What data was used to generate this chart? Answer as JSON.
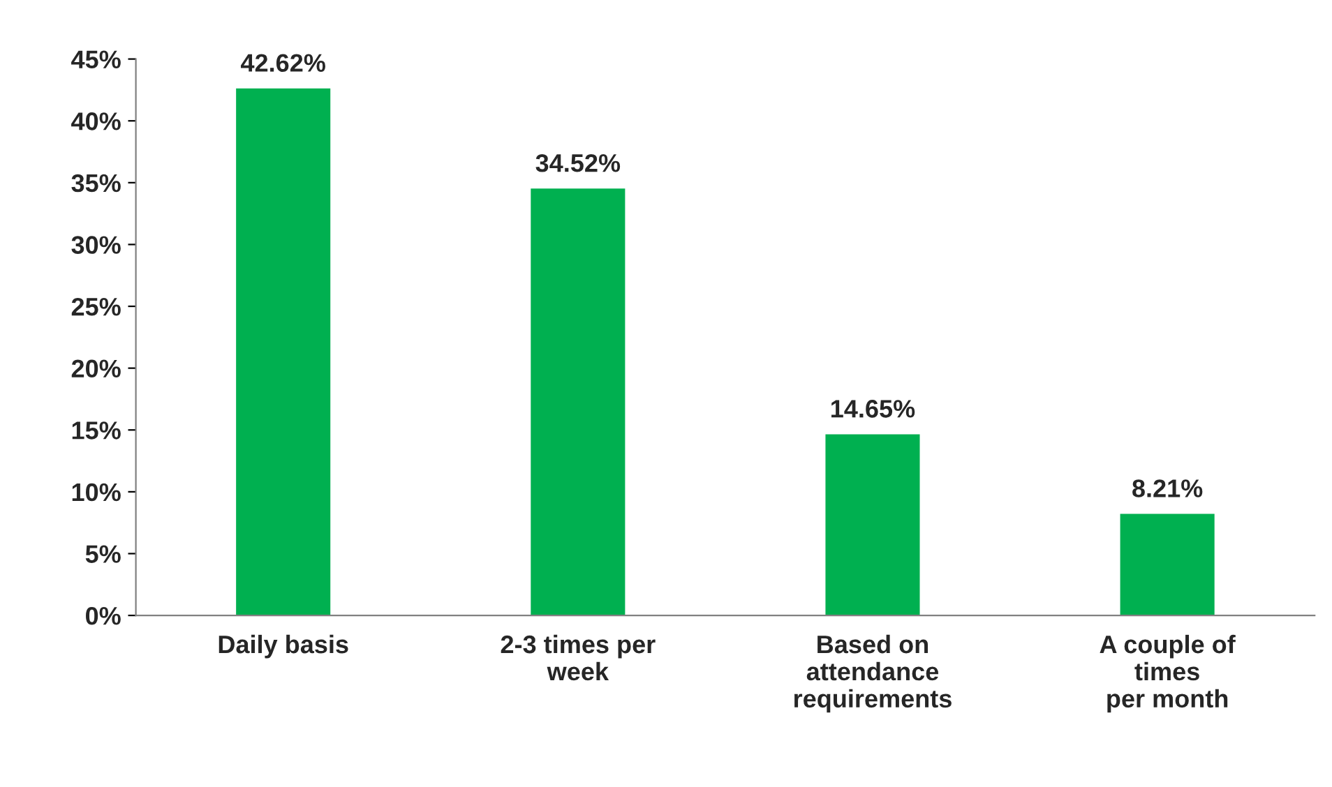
{
  "chart_data": {
    "type": "bar",
    "categories": [
      "Daily basis",
      "2-3 times per\nweek",
      "Based on\nattendance\nrequirements",
      "A couple of\ntimes\nper month"
    ],
    "values": [
      42.62,
      34.52,
      14.65,
      8.21
    ],
    "value_labels": [
      "42.62%",
      "34.52%",
      "14.65%",
      "8.21%"
    ],
    "color": "#00b050",
    "ylim": [
      0,
      45
    ],
    "yticks": [
      {
        "value": 0,
        "label": "0%"
      },
      {
        "value": 5,
        "label": "5%"
      },
      {
        "value": 10,
        "label": "10%"
      },
      {
        "value": 15,
        "label": "15%"
      },
      {
        "value": 20,
        "label": "20%"
      },
      {
        "value": 25,
        "label": "25%"
      },
      {
        "value": 30,
        "label": "30%"
      },
      {
        "value": 35,
        "label": "35%"
      },
      {
        "value": 40,
        "label": "40%"
      },
      {
        "value": 45,
        "label": "45%"
      }
    ],
    "grid": false,
    "legend": false
  }
}
